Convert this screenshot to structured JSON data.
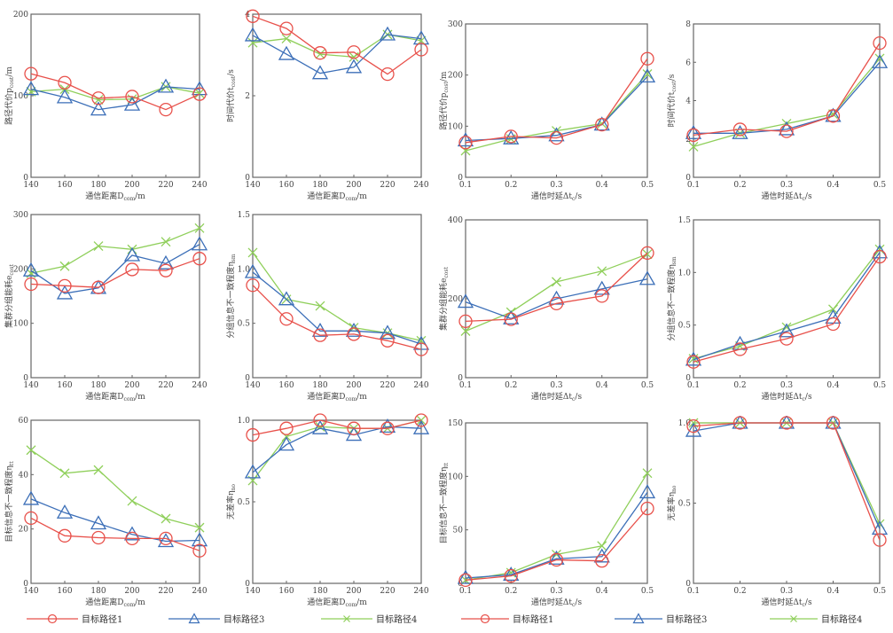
{
  "chart_data": [
    {
      "type": "line",
      "id": "a1",
      "ylabel": "路径代价p_cost/m",
      "xlabel": "通信距离D_com/m",
      "x": [
        140,
        160,
        180,
        200,
        220,
        240
      ],
      "xticks": [
        "140",
        "160",
        "180",
        "200",
        "220",
        "240"
      ],
      "ylim": [
        0,
        200
      ],
      "yticks": [
        0,
        100,
        200
      ],
      "series": [
        {
          "name": "目标路径1",
          "values": [
            127,
            116,
            97,
            99,
            83,
            102
          ]
        },
        {
          "name": "目标路径3",
          "values": [
            108,
            98,
            83,
            89,
            111,
            108
          ]
        },
        {
          "name": "目标路径4",
          "values": [
            105,
            108,
            95,
            96,
            111,
            103
          ]
        }
      ]
    },
    {
      "type": "line",
      "id": "a2",
      "ylabel": "时间代价t_cost/s",
      "xlabel": "通信距离D_com/m",
      "x": [
        140,
        160,
        180,
        200,
        220,
        240
      ],
      "xticks": [
        "140",
        "160",
        "180",
        "200",
        "220",
        "240"
      ],
      "ylim": [
        0,
        4
      ],
      "yticks": [
        0,
        2,
        4
      ],
      "series": [
        {
          "name": "目标路径1",
          "values": [
            3.95,
            3.65,
            3.05,
            3.07,
            2.53,
            3.13
          ]
        },
        {
          "name": "目标路径3",
          "values": [
            3.48,
            3.02,
            2.55,
            2.7,
            3.5,
            3.4
          ]
        },
        {
          "name": "目标路径4",
          "values": [
            3.3,
            3.4,
            3.02,
            2.95,
            3.5,
            3.35
          ]
        }
      ]
    },
    {
      "type": "line",
      "id": "a3",
      "ylabel": "路径代价p_cost/m",
      "xlabel": "通信时延Δt_c/s",
      "x": [
        0.1,
        0.2,
        0.3,
        0.4,
        0.5
      ],
      "xticks": [
        "0.1",
        "0.2",
        "0.3",
        "0.4",
        "0.5"
      ],
      "ylim": [
        0,
        300
      ],
      "yticks": [
        0,
        100,
        200,
        300
      ],
      "series": [
        {
          "name": "目标路径1",
          "values": [
            68,
            80,
            77,
            103,
            232
          ]
        },
        {
          "name": "目标路径3",
          "values": [
            72,
            76,
            82,
            103,
            197
          ]
        },
        {
          "name": "目标路径4",
          "values": [
            52,
            75,
            91,
            105,
            202
          ]
        }
      ]
    },
    {
      "type": "line",
      "id": "a4",
      "ylabel": "时间代价t_cost/s",
      "xlabel": "通信时延Δt_c/s",
      "x": [
        0.1,
        0.2,
        0.3,
        0.4,
        0.5
      ],
      "xticks": [
        "0.1",
        "0.2",
        "0.3",
        "0.4",
        "0.5"
      ],
      "ylim": [
        0,
        8
      ],
      "yticks": [
        0,
        2,
        4,
        6,
        8
      ],
      "series": [
        {
          "name": "目标路径1",
          "values": [
            2.2,
            2.5,
            2.4,
            3.2,
            7.0
          ]
        },
        {
          "name": "目标路径3",
          "values": [
            2.3,
            2.3,
            2.5,
            3.2,
            6.0
          ]
        },
        {
          "name": "目标路径4",
          "values": [
            1.6,
            2.3,
            2.8,
            3.3,
            6.2
          ]
        }
      ]
    },
    {
      "type": "line",
      "id": "b1",
      "ylabel": "集群分组能耗e_cost",
      "xlabel": "通信距离D_com/m",
      "x": [
        140,
        160,
        180,
        200,
        220,
        240
      ],
      "xticks": [
        "140",
        "160",
        "180",
        "200",
        "220",
        "240"
      ],
      "ylim": [
        0,
        300
      ],
      "yticks": [
        0,
        100,
        200,
        300
      ],
      "series": [
        {
          "name": "目标路径1",
          "values": [
            172,
            169,
            166,
            199,
            197,
            219
          ]
        },
        {
          "name": "目标路径3",
          "values": [
            197,
            155,
            165,
            225,
            210,
            245
          ]
        },
        {
          "name": "目标路径4",
          "values": [
            192,
            205,
            242,
            236,
            250,
            275
          ]
        }
      ]
    },
    {
      "type": "line",
      "id": "b2",
      "ylabel": "分组信息不一致程度η_sm",
      "xlabel": "通信距离D_com/m",
      "x": [
        140,
        160,
        180,
        200,
        220,
        240
      ],
      "xticks": [
        "140",
        "160",
        "180",
        "200",
        "220",
        "240"
      ],
      "ylim": [
        0,
        1.5
      ],
      "yticks": [
        0,
        0.5,
        1.0,
        1.5
      ],
      "series": [
        {
          "name": "目标路径1",
          "values": [
            0.85,
            0.54,
            0.39,
            0.4,
            0.34,
            0.26
          ]
        },
        {
          "name": "目标路径3",
          "values": [
            0.97,
            0.72,
            0.43,
            0.43,
            0.41,
            0.31
          ]
        },
        {
          "name": "目标路径4",
          "values": [
            1.15,
            0.72,
            0.66,
            0.46,
            0.41,
            0.34
          ]
        }
      ]
    },
    {
      "type": "line",
      "id": "b3",
      "ylabel": "集群分组能耗e_cost",
      "xlabel": "通信时延Δt_c/s",
      "x": [
        0.1,
        0.2,
        0.3,
        0.4,
        0.5
      ],
      "xticks": [
        "0.1",
        "0.2",
        "0.3",
        "0.4",
        "0.5"
      ],
      "ylim": [
        0,
        400
      ],
      "yticks": [
        0,
        200,
        400
      ],
      "series": [
        {
          "name": "目标路径1",
          "values": [
            143,
            148,
            188,
            207,
            316
          ]
        },
        {
          "name": "目标路径3",
          "values": [
            192,
            150,
            200,
            225,
            250
          ]
        },
        {
          "name": "目标路径4",
          "values": [
            118,
            166,
            243,
            270,
            313
          ]
        }
      ]
    },
    {
      "type": "line",
      "id": "b4",
      "ylabel": "分组信息不一致程度η_sm",
      "xlabel": "通信时延Δt_c/s",
      "x": [
        0.1,
        0.2,
        0.3,
        0.4,
        0.5
      ],
      "xticks": [
        "0.1",
        "0.2",
        "0.3",
        "0.4",
        "0.5"
      ],
      "ylim": [
        0,
        1.5
      ],
      "yticks": [
        0,
        0.5,
        1.0,
        1.5
      ],
      "series": [
        {
          "name": "目标路径1",
          "values": [
            0.15,
            0.27,
            0.37,
            0.51,
            1.15
          ]
        },
        {
          "name": "目标路径3",
          "values": [
            0.17,
            0.32,
            0.44,
            0.57,
            1.19
          ]
        },
        {
          "name": "目标路径4",
          "values": [
            0.18,
            0.3,
            0.48,
            0.65,
            1.22
          ]
        }
      ]
    },
    {
      "type": "line",
      "id": "c1",
      "ylabel": "目标信息不一致程度η_tt",
      "xlabel": "通信距离D_com/m",
      "x": [
        140,
        160,
        180,
        200,
        220,
        240
      ],
      "xticks": [
        "140",
        "160",
        "180",
        "200",
        "220",
        "240"
      ],
      "ylim": [
        0,
        60
      ],
      "yticks": [
        0,
        20,
        40,
        60
      ],
      "series": [
        {
          "name": "目标路径1",
          "values": [
            24,
            17.5,
            16.8,
            16.5,
            16.5,
            12
          ]
        },
        {
          "name": "目标路径3",
          "values": [
            31,
            26,
            22,
            18,
            15.5,
            15.8
          ]
        },
        {
          "name": "目标路径4",
          "values": [
            49,
            40.5,
            41.7,
            30.3,
            23.8,
            20.5
          ]
        }
      ]
    },
    {
      "type": "line",
      "id": "c2",
      "ylabel": "无差率η_no",
      "xlabel": "通信距离D_com/m",
      "x": [
        140,
        160,
        180,
        200,
        220,
        240
      ],
      "xticks": [
        "140",
        "160",
        "180",
        "200",
        "220",
        "240"
      ],
      "ylim": [
        0,
        1.0
      ],
      "yticks": [
        0,
        0.5,
        1.0
      ],
      "series": [
        {
          "name": "目标路径1",
          "values": [
            0.91,
            0.95,
            1.0,
            0.95,
            0.95,
            1.0
          ]
        },
        {
          "name": "目标路径3",
          "values": [
            0.68,
            0.85,
            0.95,
            0.91,
            0.96,
            0.95
          ]
        },
        {
          "name": "目标路径4",
          "values": [
            0.63,
            0.9,
            0.96,
            0.95,
            0.95,
            1.0
          ]
        }
      ]
    },
    {
      "type": "line",
      "id": "c3",
      "ylabel": "目标信息不一致程度η_tt",
      "xlabel": "通信时延Δt_c/s",
      "x": [
        0.1,
        0.2,
        0.3,
        0.4,
        0.5
      ],
      "xticks": [
        "0.1",
        "0.2",
        "0.3",
        "0.4",
        "0.5"
      ],
      "ylim": [
        0,
        150
      ],
      "yticks": [
        0,
        50,
        100,
        150
      ],
      "series": [
        {
          "name": "目标路径1",
          "values": [
            3,
            7,
            22,
            21,
            70
          ]
        },
        {
          "name": "目标路径3",
          "values": [
            5,
            8,
            23,
            25,
            85
          ]
        },
        {
          "name": "目标路径4",
          "values": [
            3,
            10,
            27,
            35,
            103
          ]
        }
      ]
    },
    {
      "type": "line",
      "id": "c4",
      "ylabel": "无差率η_no",
      "xlabel": "通信时延Δt_c/s",
      "x": [
        0.1,
        0.2,
        0.3,
        0.4,
        0.5
      ],
      "xticks": [
        "0.1",
        "0.2",
        "0.3",
        "0.4",
        "0.5"
      ],
      "ylim": [
        0,
        1.0
      ],
      "yticks": [
        0,
        0.5,
        1.0
      ],
      "series": [
        {
          "name": "目标路径1",
          "values": [
            0.98,
            1.0,
            1.0,
            1.0,
            0.27
          ]
        },
        {
          "name": "目标路径3",
          "values": [
            0.95,
            1.0,
            1.0,
            1.0,
            0.34
          ]
        },
        {
          "name": "目标路径4",
          "values": [
            1.0,
            1.0,
            1.0,
            1.0,
            0.37
          ]
        }
      ]
    }
  ],
  "series_styles": [
    {
      "name": "目标路径1",
      "color": "#e8504a",
      "marker": "circle"
    },
    {
      "name": "目标路径3",
      "color": "#3c6fb8",
      "marker": "triangle"
    },
    {
      "name": "目标路径4",
      "color": "#8fcf5a",
      "marker": "x"
    }
  ],
  "legend": {
    "left": [
      {
        "label": "目标路径1"
      },
      {
        "label": "目标路径3"
      },
      {
        "label": "目标路径4"
      }
    ],
    "right": [
      {
        "label": "目标路径1"
      },
      {
        "label": "目标路径3"
      },
      {
        "label": "目标路径4"
      }
    ]
  }
}
